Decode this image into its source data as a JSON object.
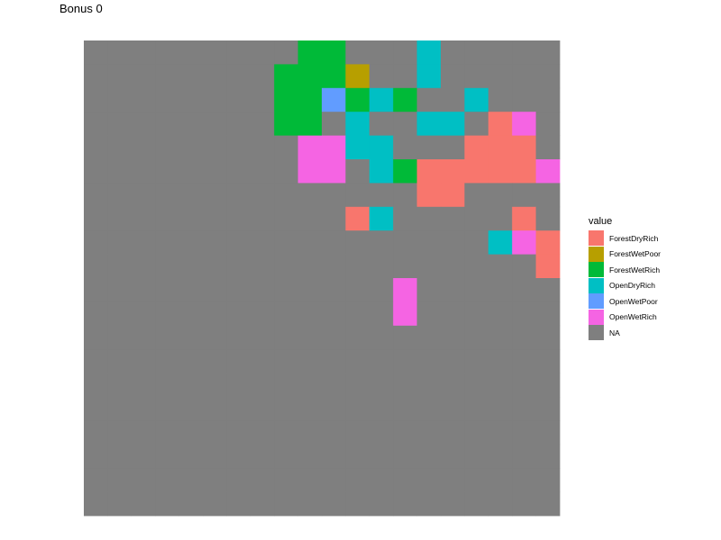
{
  "chart_data": {
    "type": "heatmap",
    "title": "Bonus 0",
    "legend": {
      "title": "value",
      "position": "right",
      "entries": [
        {
          "key": "FDR",
          "label": "ForestDryRich",
          "color": "#F8766D"
        },
        {
          "key": "FWP",
          "label": "ForestWetPoor",
          "color": "#B79F00"
        },
        {
          "key": "FWR",
          "label": "ForestWetRich",
          "color": "#00BA38"
        },
        {
          "key": "ODR",
          "label": "OpenDryRich",
          "color": "#00BFC4"
        },
        {
          "key": "OWP",
          "label": "OpenWetPoor",
          "color": "#619CFF"
        },
        {
          "key": "OWR",
          "label": "OpenWetRich",
          "color": "#F564E3"
        },
        {
          "key": "NA",
          "label": "NA",
          "color": "#7F7F7F"
        }
      ]
    },
    "grid": {
      "cols": 20,
      "rows": 20,
      "default": "NA",
      "cells": [
        {
          "row": 0,
          "col": 9,
          "value": "FWR"
        },
        {
          "row": 0,
          "col": 10,
          "value": "FWR"
        },
        {
          "row": 0,
          "col": 14,
          "value": "ODR"
        },
        {
          "row": 1,
          "col": 8,
          "value": "FWR"
        },
        {
          "row": 1,
          "col": 9,
          "value": "FWR"
        },
        {
          "row": 1,
          "col": 10,
          "value": "FWR"
        },
        {
          "row": 1,
          "col": 11,
          "value": "FWP"
        },
        {
          "row": 1,
          "col": 14,
          "value": "ODR"
        },
        {
          "row": 2,
          "col": 8,
          "value": "FWR"
        },
        {
          "row": 2,
          "col": 9,
          "value": "FWR"
        },
        {
          "row": 2,
          "col": 10,
          "value": "OWP"
        },
        {
          "row": 2,
          "col": 11,
          "value": "FWR"
        },
        {
          "row": 2,
          "col": 12,
          "value": "ODR"
        },
        {
          "row": 2,
          "col": 13,
          "value": "FWR"
        },
        {
          "row": 2,
          "col": 16,
          "value": "ODR"
        },
        {
          "row": 3,
          "col": 8,
          "value": "FWR"
        },
        {
          "row": 3,
          "col": 9,
          "value": "FWR"
        },
        {
          "row": 3,
          "col": 11,
          "value": "ODR"
        },
        {
          "row": 3,
          "col": 14,
          "value": "ODR"
        },
        {
          "row": 3,
          "col": 15,
          "value": "ODR"
        },
        {
          "row": 3,
          "col": 17,
          "value": "FDR"
        },
        {
          "row": 3,
          "col": 18,
          "value": "OWR"
        },
        {
          "row": 4,
          "col": 9,
          "value": "OWR"
        },
        {
          "row": 4,
          "col": 10,
          "value": "OWR"
        },
        {
          "row": 4,
          "col": 11,
          "value": "ODR"
        },
        {
          "row": 4,
          "col": 12,
          "value": "ODR"
        },
        {
          "row": 4,
          "col": 16,
          "value": "FDR"
        },
        {
          "row": 4,
          "col": 17,
          "value": "FDR"
        },
        {
          "row": 4,
          "col": 18,
          "value": "FDR"
        },
        {
          "row": 5,
          "col": 9,
          "value": "OWR"
        },
        {
          "row": 5,
          "col": 10,
          "value": "OWR"
        },
        {
          "row": 5,
          "col": 12,
          "value": "ODR"
        },
        {
          "row": 5,
          "col": 13,
          "value": "FWR"
        },
        {
          "row": 5,
          "col": 14,
          "value": "FDR"
        },
        {
          "row": 5,
          "col": 15,
          "value": "FDR"
        },
        {
          "row": 5,
          "col": 16,
          "value": "FDR"
        },
        {
          "row": 5,
          "col": 17,
          "value": "FDR"
        },
        {
          "row": 5,
          "col": 18,
          "value": "FDR"
        },
        {
          "row": 5,
          "col": 19,
          "value": "OWR"
        },
        {
          "row": 6,
          "col": 14,
          "value": "FDR"
        },
        {
          "row": 6,
          "col": 15,
          "value": "FDR"
        },
        {
          "row": 7,
          "col": 11,
          "value": "FDR"
        },
        {
          "row": 7,
          "col": 12,
          "value": "ODR"
        },
        {
          "row": 7,
          "col": 18,
          "value": "FDR"
        },
        {
          "row": 8,
          "col": 17,
          "value": "ODR"
        },
        {
          "row": 8,
          "col": 18,
          "value": "OWR"
        },
        {
          "row": 8,
          "col": 19,
          "value": "FDR"
        },
        {
          "row": 9,
          "col": 19,
          "value": "FDR"
        },
        {
          "row": 10,
          "col": 13,
          "value": "OWR"
        },
        {
          "row": 11,
          "col": 13,
          "value": "OWR"
        }
      ]
    }
  }
}
